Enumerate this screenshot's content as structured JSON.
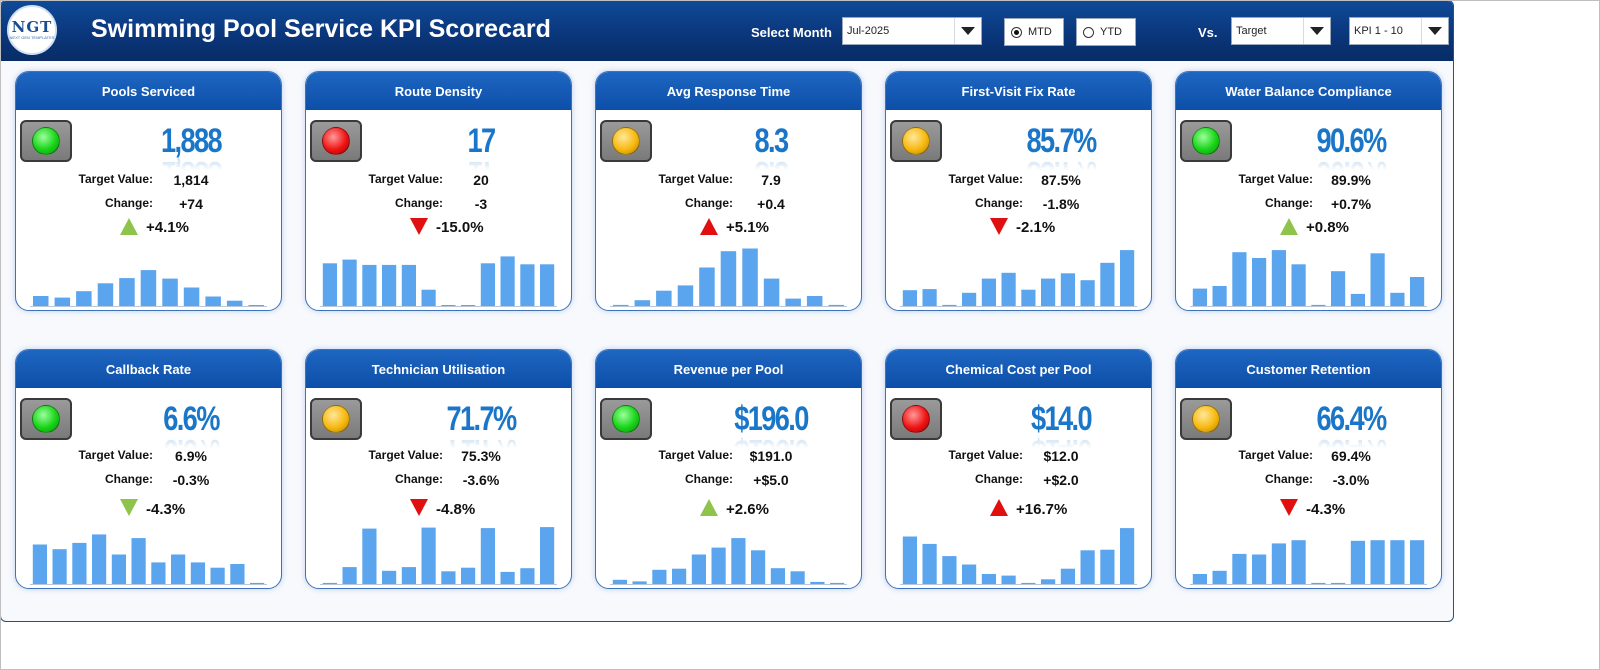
{
  "header": {
    "logo_text": "NGT",
    "logo_subtext": "NEXT GEN TEMPLATES",
    "title": "Swimming Pool Service KPI Scorecard",
    "select_month_label": "Select Month",
    "month_value": "Jul-2025",
    "mtd_label": "MTD",
    "ytd_label": "YTD",
    "mtd_selected": true,
    "vs_label": "Vs.",
    "compare_value": "Target",
    "kpi_range_value": "KPI 1 - 10"
  },
  "labels": {
    "target": "Target Value:",
    "change": "Change:"
  },
  "colors": {
    "header": "#0a3579",
    "bar": "#5aa5ee",
    "value": "#1976c8",
    "up_good": "#8ec44c",
    "bad": "#e01010"
  },
  "kpis": [
    {
      "title": "Pools Serviced",
      "value": "1,888",
      "target": "1,814",
      "change": "+74",
      "pct": "+4.1%",
      "status": "green",
      "arrow": "up",
      "arrow_color": "#8ec44c",
      "bars": [
        1.9,
        1.6,
        2.8,
        4.3,
        5.3,
        6.8,
        5.2,
        3.5,
        1.8,
        1.0,
        0.15
      ]
    },
    {
      "title": "Route Density",
      "value": "17",
      "target": "20",
      "change": "-3",
      "pct": "-15.0%",
      "status": "red",
      "arrow": "down",
      "arrow_color": "#e01010",
      "bars": [
        8.1,
        8.8,
        7.8,
        7.8,
        7.8,
        3.1,
        0.15,
        0.15,
        8.1,
        9.4,
        7.9,
        7.9
      ]
    },
    {
      "title": "Avg Response Time",
      "value": "8.3",
      "target": "7.9",
      "change": "+0.4",
      "pct": "+5.1%",
      "status": "yellow",
      "arrow": "up",
      "arrow_color": "#e01010",
      "bars": [
        0.2,
        1.1,
        2.9,
        3.9,
        7.3,
        10.4,
        10.9,
        5.2,
        1.4,
        1.9,
        0.2
      ]
    },
    {
      "title": "First-Visit Fix Rate",
      "value": "85.7%",
      "target": "87.5%",
      "change": "-1.8%",
      "pct": "-2.1%",
      "status": "yellow",
      "arrow": "down",
      "arrow_color": "#e01010",
      "bars": [
        3.0,
        3.2,
        0.2,
        2.5,
        5.2,
        6.3,
        3.1,
        5.2,
        6.2,
        4.9,
        8.2,
        10.6
      ]
    },
    {
      "title": "Water Balance Compliance",
      "value": "90.6%",
      "target": "89.9%",
      "change": "+0.7%",
      "pct": "+0.8%",
      "status": "green",
      "arrow": "up",
      "arrow_color": "#8ec44c",
      "bars": [
        3.3,
        3.8,
        10.2,
        9.1,
        10.6,
        7.9,
        0.2,
        6.6,
        2.3,
        10.0,
        2.5,
        5.5
      ]
    },
    {
      "title": "Callback Rate",
      "value": "6.6%",
      "target": "6.9%",
      "change": "-0.3%",
      "pct": "-4.3%",
      "status": "green",
      "arrow": "down",
      "arrow_color": "#8ec44c",
      "bars": [
        7.5,
        6.6,
        7.8,
        9.4,
        5.6,
        8.7,
        4.1,
        5.6,
        4.1,
        3.1,
        3.8,
        0.2
      ]
    },
    {
      "title": "Technician Utilisation",
      "value": "71.7%",
      "target": "75.3%",
      "change": "-3.6%",
      "pct": "-4.8%",
      "status": "yellow",
      "arrow": "down",
      "arrow_color": "#e01010",
      "bars": [
        0.2,
        3.2,
        10.5,
        2.5,
        3.2,
        10.7,
        2.4,
        3.1,
        10.6,
        2.3,
        3.0,
        10.8
      ]
    },
    {
      "title": "Revenue per Pool",
      "value": "$196.0",
      "target": "$191.0",
      "change": "+$5.0",
      "pct": "+2.6%",
      "status": "green",
      "arrow": "up",
      "arrow_color": "#8ec44c",
      "bars": [
        0.8,
        0.5,
        2.7,
        2.9,
        5.6,
        6.9,
        8.7,
        6.4,
        3.0,
        2.4,
        0.4,
        0.2
      ]
    },
    {
      "title": "Chemical Cost per Pool",
      "value": "$14.0",
      "target": "$12.0",
      "change": "+$2.0",
      "pct": "+16.7%",
      "status": "red",
      "arrow": "up",
      "arrow_color": "#e01010",
      "bars": [
        9.0,
        7.6,
        5.3,
        3.7,
        1.9,
        1.6,
        0.2,
        0.9,
        2.9,
        6.4,
        6.5,
        10.6
      ]
    },
    {
      "title": "Customer Retention",
      "value": "66.4%",
      "target": "69.4%",
      "change": "-3.0%",
      "pct": "-4.3%",
      "status": "yellow",
      "arrow": "down",
      "arrow_color": "#e01010",
      "bars": [
        1.9,
        2.5,
        5.7,
        5.6,
        7.7,
        8.3,
        0.2,
        0.2,
        8.2,
        8.3,
        8.3,
        8.3
      ]
    }
  ]
}
